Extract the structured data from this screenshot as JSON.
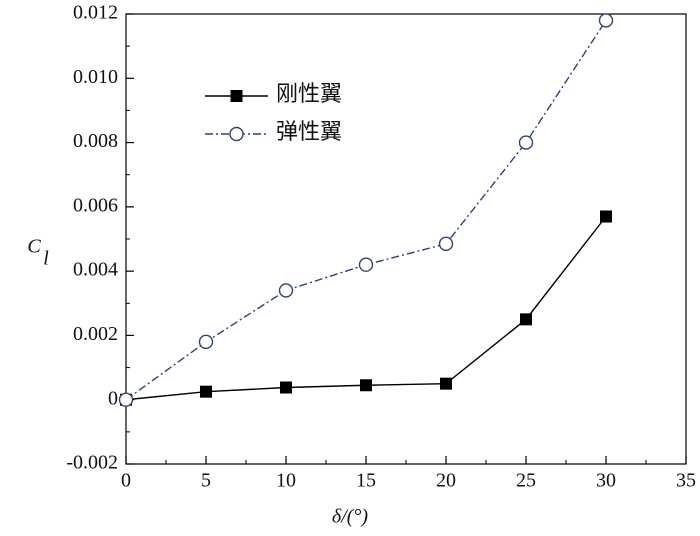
{
  "chart_data": {
    "type": "line",
    "xlabel": "δ/(°)",
    "ylabel": "C",
    "ylabel_subscript": "l",
    "x": [
      0,
      5,
      10,
      15,
      20,
      25,
      30
    ],
    "series": [
      {
        "name": "刚性翼",
        "color": "#000000",
        "line_style": "solid",
        "marker": "filled-square",
        "values": [
          0,
          0.00025,
          0.00038,
          0.00045,
          0.0005,
          0.0025,
          0.0057
        ]
      },
      {
        "name": "弹性翼",
        "color": "#2e4374",
        "line_style": "dash-dot",
        "marker": "open-circle",
        "values": [
          0,
          0.0018,
          0.0034,
          0.0042,
          0.00485,
          0.008,
          0.0118
        ]
      }
    ],
    "xlim": [
      0,
      35
    ],
    "xticks": [
      0,
      5,
      10,
      15,
      20,
      25,
      30,
      35
    ],
    "ylim": [
      -0.002,
      0.012
    ],
    "yticks": [
      -0.002,
      0,
      0.002,
      0.004,
      0.006,
      0.008,
      {
        "value": 0.01,
        "label": "0.010"
      },
      0.012
    ],
    "legend": "upper-left",
    "grid": false
  }
}
